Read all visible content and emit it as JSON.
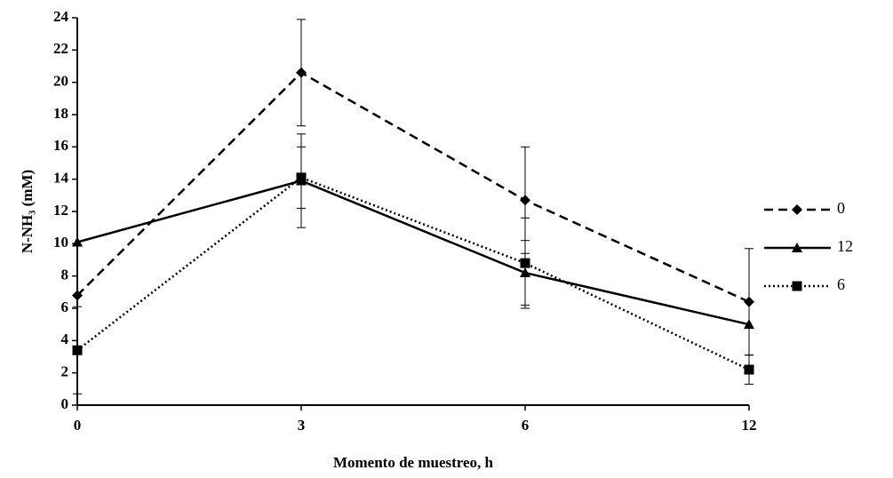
{
  "chart_data": {
    "type": "line",
    "x_label": "Momento de muestreo, h",
    "y_label": "N-NH₃ (mM)",
    "categories": [
      "0",
      "3",
      "6",
      "12"
    ],
    "ylim": [
      0,
      24
    ],
    "yticks": [
      0,
      2,
      4,
      6,
      8,
      10,
      12,
      14,
      16,
      18,
      20,
      22,
      24
    ],
    "legend": "right",
    "series": [
      {
        "name": "0",
        "color": "#000000",
        "dash": "dashed",
        "marker": "diamond",
        "values": [
          6.8,
          20.6,
          12.7,
          6.4
        ],
        "errors": [
          null,
          3.3,
          3.3,
          3.3
        ]
      },
      {
        "name": "12",
        "color": "#000000",
        "dash": "solid",
        "marker": "triangle",
        "values": [
          10.1,
          13.9,
          8.2,
          5.0
        ],
        "errors": [
          null,
          2.9,
          2.0,
          null
        ]
      },
      {
        "name": "6",
        "color": "#000000",
        "dash": "dotted",
        "marker": "square",
        "values": [
          3.4,
          14.1,
          8.8,
          2.2
        ],
        "errors": [
          2.7,
          1.9,
          2.8,
          0.9
        ]
      }
    ]
  }
}
